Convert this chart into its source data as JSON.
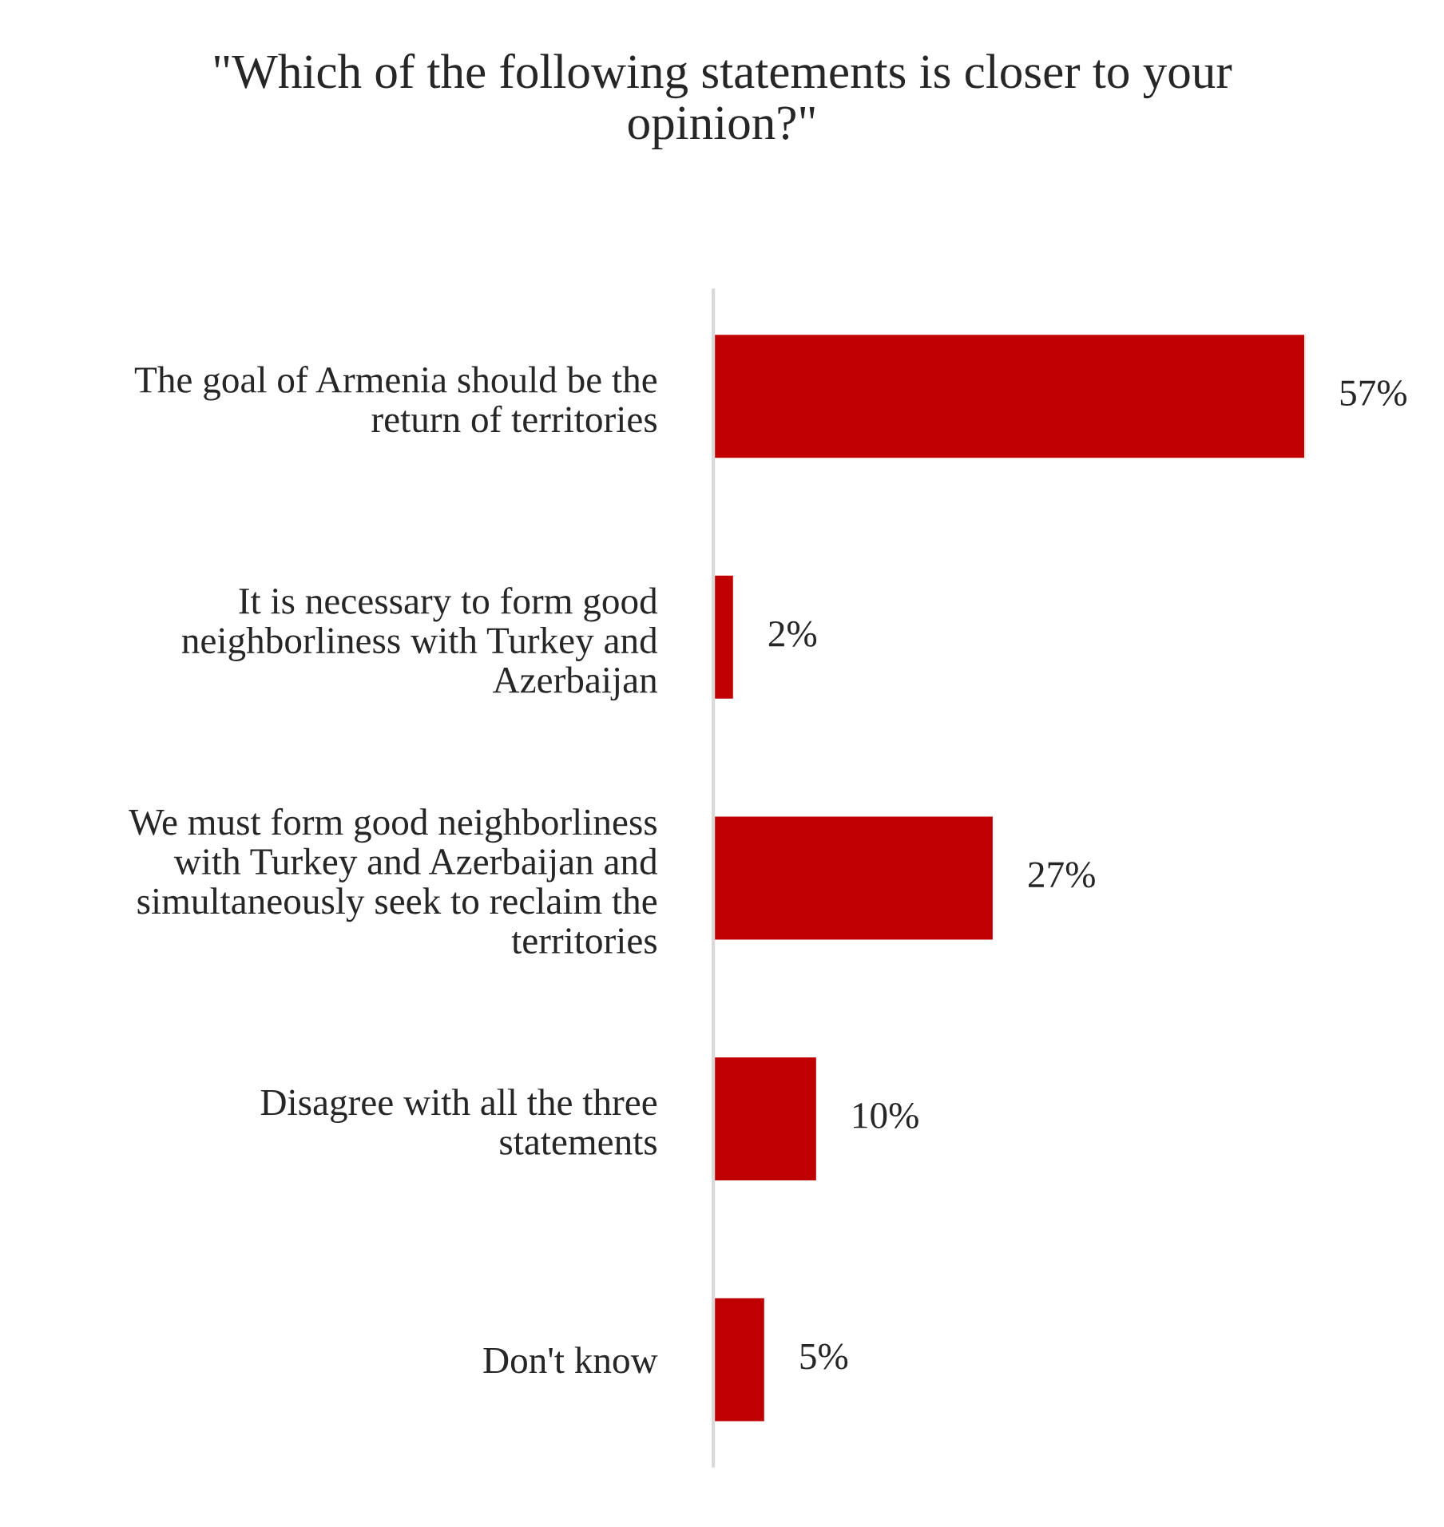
{
  "chart_data": {
    "type": "bar",
    "orientation": "horizontal",
    "title": "\"Which of the following statements is closer to your\nopinion?\"",
    "categories": [
      "The goal of Armenia should be the\nreturn of territories",
      "It is necessary to form good\nneighborliness with Turkey and\nAzerbaijan",
      "We must form good neighborliness\nwith Turkey and Azerbaijan and\nsimultaneously seek to reclaim the\nterritories",
      "Disagree with all the three\nstatements",
      "Don't know"
    ],
    "values": [
      57,
      2,
      27,
      10,
      5
    ],
    "value_labels": [
      "57%",
      "2%",
      "27%",
      "10%",
      "5%"
    ],
    "color": "#c00000",
    "grid": false,
    "legend": false
  }
}
